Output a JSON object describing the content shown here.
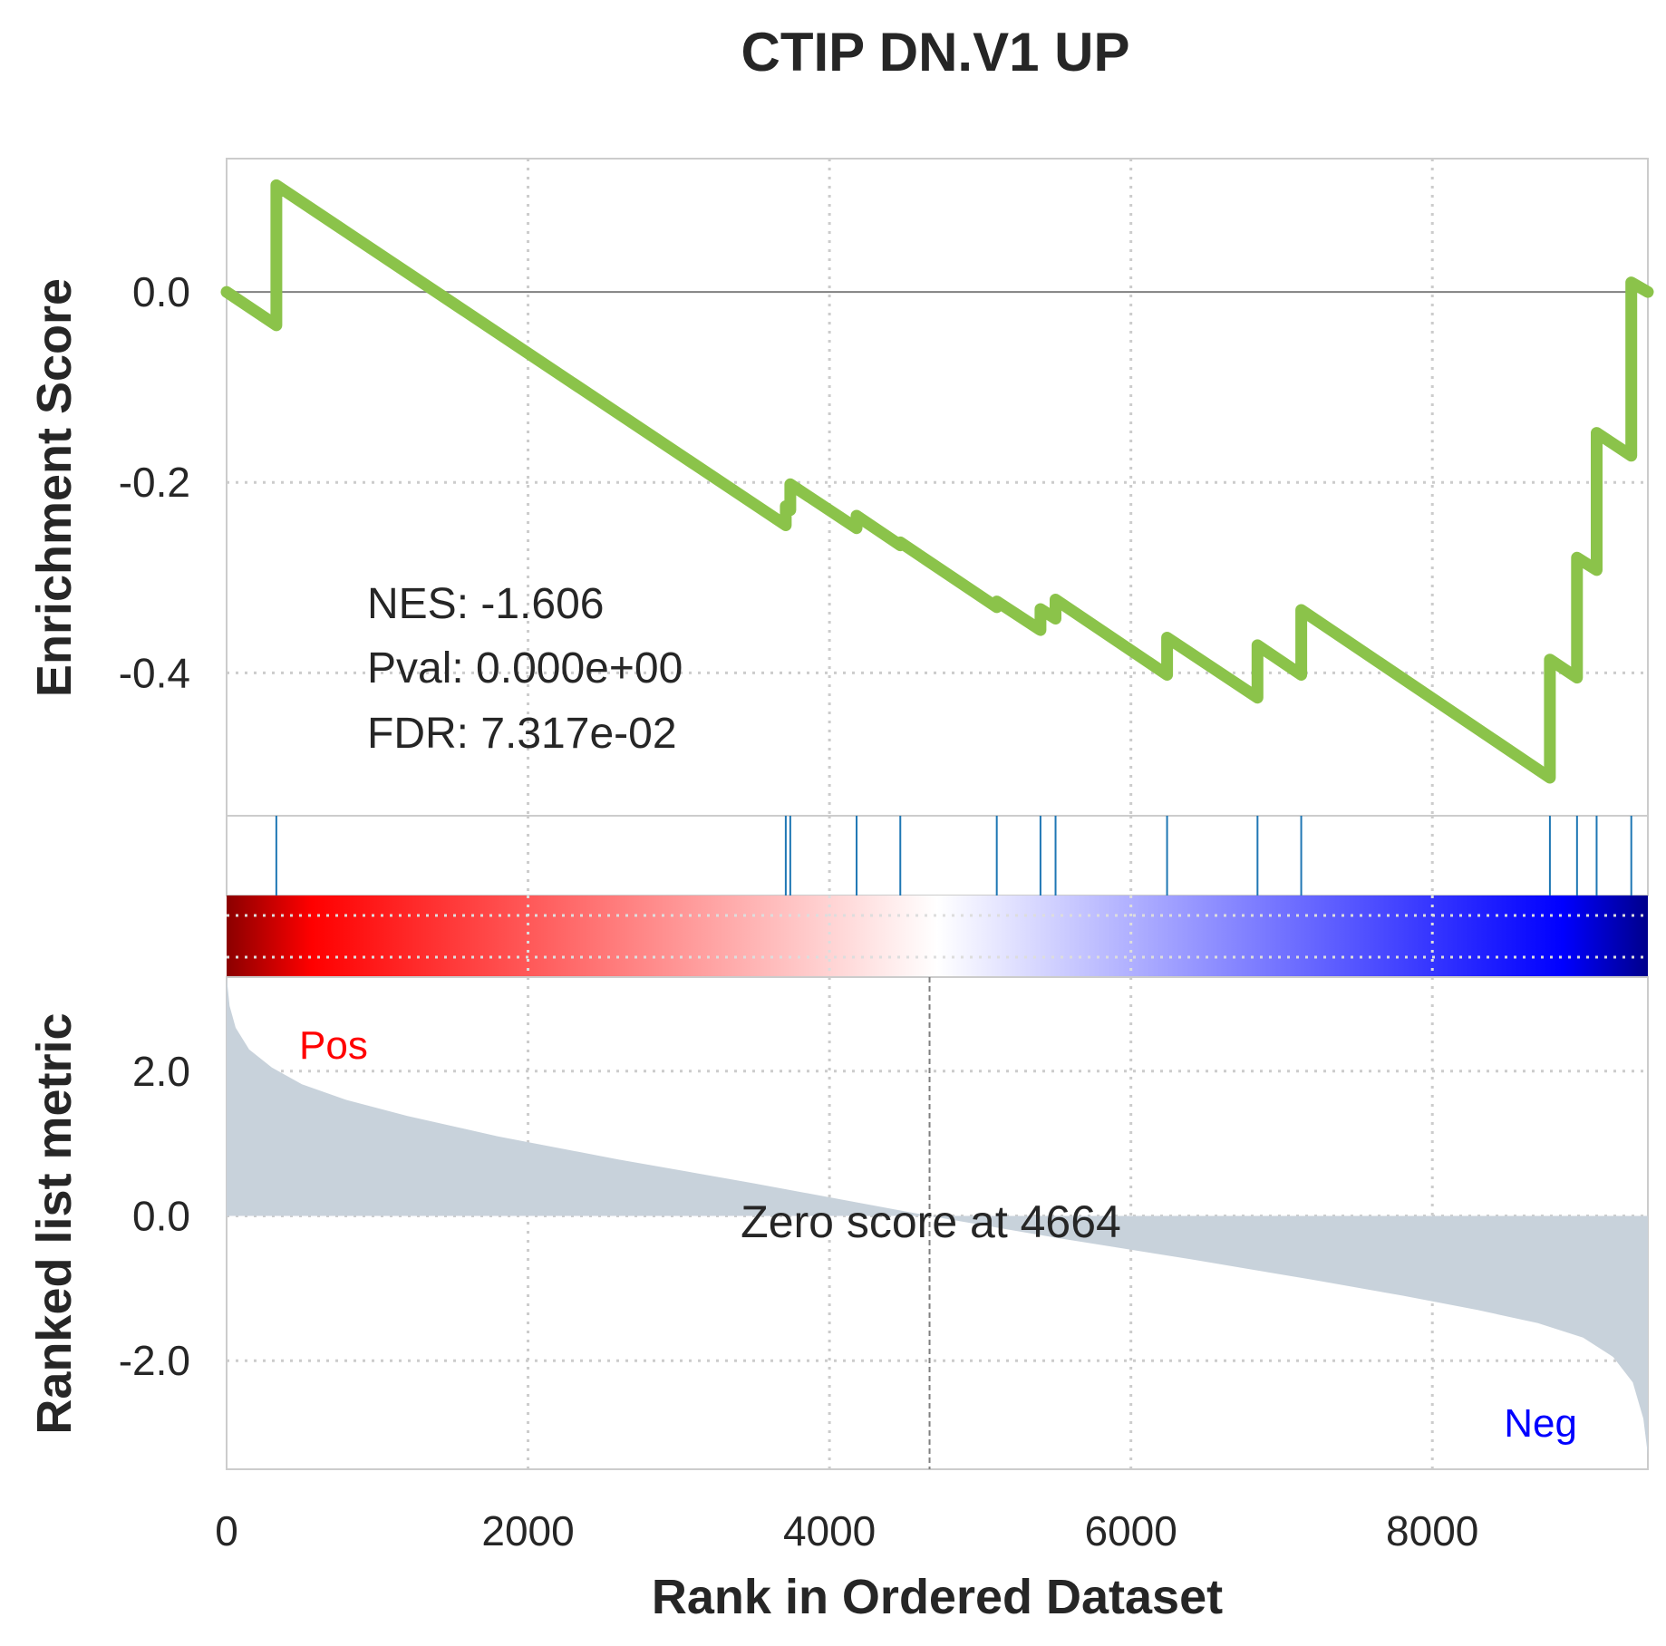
{
  "chart_data": {
    "type": "line",
    "title": "CTIP DN.V1 UP",
    "top_panel": {
      "ylabel": "Enrichment Score",
      "yticks": [
        0.0,
        -0.2,
        -0.4
      ],
      "ytick_labels": [
        "0.0",
        "-0.2",
        "-0.4"
      ],
      "ylim": [
        -0.55,
        0.14
      ],
      "line_color": "#8BC34A",
      "series": [
        {
          "x": [
            0,
            330,
            330,
            3710,
            3710,
            3740,
            3740,
            4180,
            4180,
            4470,
            4470,
            5110,
            5110,
            5400,
            5400,
            5500,
            5500,
            6240,
            6240,
            6840,
            6840,
            7130,
            7130,
            8780,
            8780,
            8960,
            8960,
            9090,
            9090,
            9320,
            9320,
            9430
          ],
          "y": [
            0.0,
            -0.035,
            0.112,
            -0.245,
            -0.225,
            -0.229,
            -0.202,
            -0.248,
            -0.235,
            -0.266,
            -0.263,
            -0.331,
            -0.325,
            -0.355,
            -0.333,
            -0.343,
            -0.323,
            -0.402,
            -0.363,
            -0.426,
            -0.371,
            -0.402,
            -0.334,
            -0.51,
            -0.386,
            -0.405,
            -0.279,
            -0.292,
            -0.148,
            -0.172,
            0.01,
            0.0
          ]
        }
      ],
      "annotations": {
        "nes": "NES: -1.606",
        "pval": "Pval: 0.000e+00",
        "fdr": "FDR: 7.317e-02"
      }
    },
    "hits": {
      "color": "#1f77b4",
      "positions": [
        330,
        3710,
        3740,
        4180,
        4470,
        5110,
        5400,
        5500,
        6240,
        6840,
        7130,
        8780,
        8960,
        9090,
        9320
      ]
    },
    "colorbar": {
      "colors": [
        "#8b0000",
        "#ff0000",
        "#ffffff",
        "#0000ff",
        "#00008b"
      ]
    },
    "bottom_panel": {
      "ylabel": "Ranked list metric",
      "yticks": [
        2.0,
        0.0,
        -2.0
      ],
      "ytick_labels": [
        "2.0",
        "0.0",
        "-2.0"
      ],
      "ylim": [
        -3.5,
        3.3
      ],
      "fill_color": "#c8d2db",
      "metric_curve": {
        "x": [
          0,
          20,
          60,
          150,
          300,
          500,
          800,
          1200,
          1800,
          2600,
          3500,
          4664,
          5500,
          6400,
          7200,
          7800,
          8300,
          8700,
          9000,
          9200,
          9330,
          9400,
          9430
        ],
        "y": [
          3.3,
          2.9,
          2.6,
          2.3,
          2.05,
          1.82,
          1.6,
          1.38,
          1.1,
          0.78,
          0.45,
          0.0,
          -0.3,
          -0.6,
          -0.88,
          -1.1,
          -1.3,
          -1.48,
          -1.68,
          -1.95,
          -2.3,
          -2.8,
          -3.3
        ]
      },
      "zero_score_rank": 4664,
      "zero_score_label": "Zero score at 4664",
      "pos_label": "Pos",
      "neg_label": "Neg",
      "pos_color": "#ff0000",
      "neg_color": "#0000ff"
    },
    "x_axis": {
      "xlabel": "Rank in Ordered Dataset",
      "xlim": [
        0,
        9430
      ],
      "xticks": [
        0,
        2000,
        4000,
        6000,
        8000
      ],
      "xtick_labels": [
        "0",
        "2000",
        "4000",
        "6000",
        "8000"
      ]
    },
    "grid": true
  }
}
